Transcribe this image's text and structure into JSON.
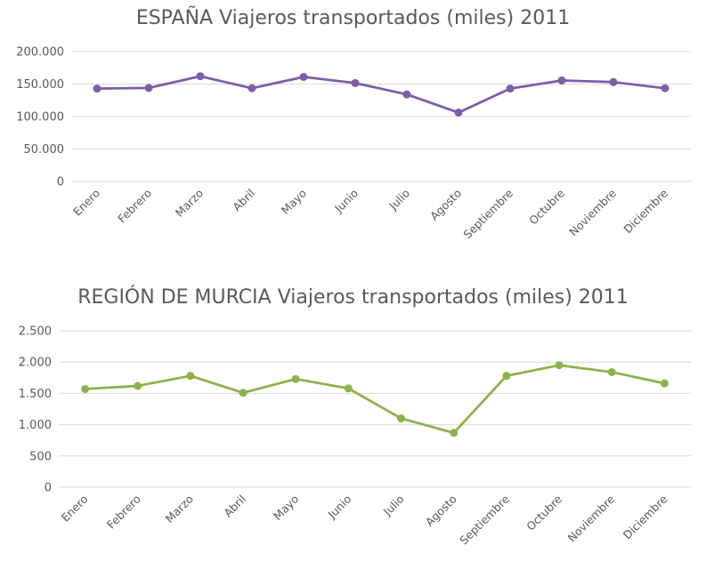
{
  "chart_data": [
    {
      "id": "espana",
      "type": "line",
      "title": "ESPAÑA Viajeros transportados (miles) 2011",
      "xlabel": "",
      "ylabel": "",
      "categories": [
        "Enero",
        "Febrero",
        "Marzo",
        "Abril",
        "Mayo",
        "Junio",
        "Julio",
        "Agosto",
        "Septiembre",
        "Octubre",
        "Noviembre",
        "Diciembre"
      ],
      "series": [
        {
          "values": [
            143000,
            144000,
            162000,
            143500,
            161000,
            151500,
            134000,
            106000,
            143000,
            155500,
            153000,
            143500
          ]
        }
      ],
      "ylim": [
        0,
        200000
      ],
      "yticks": [
        0,
        50000,
        100000,
        150000,
        200000
      ],
      "ytick_labels": [
        "0",
        "50.000",
        "100.000",
        "150.000",
        "200.000"
      ],
      "color": "#7b5ea7",
      "grid": true,
      "legend": "none"
    },
    {
      "id": "murcia",
      "type": "line",
      "title": "REGIÓN DE MURCIA Viajeros transportados (miles) 2011",
      "xlabel": "",
      "ylabel": "",
      "categories": [
        "Enero",
        "Febrero",
        "Marzo",
        "Abril",
        "Mayo",
        "Junio",
        "Julio",
        "Agosto",
        "Septiembre",
        "Octubre",
        "Noviembre",
        "Diciembre"
      ],
      "series": [
        {
          "values": [
            1570,
            1620,
            1780,
            1510,
            1730,
            1580,
            1100,
            870,
            1780,
            1950,
            1840,
            1660
          ]
        }
      ],
      "ylim": [
        0,
        2500
      ],
      "yticks": [
        0,
        500,
        1000,
        1500,
        2000,
        2500
      ],
      "ytick_labels": [
        "0",
        "500",
        "1.000",
        "1.500",
        "2.000",
        "2.500"
      ],
      "color": "#8db14b",
      "grid": true,
      "legend": "none"
    }
  ]
}
